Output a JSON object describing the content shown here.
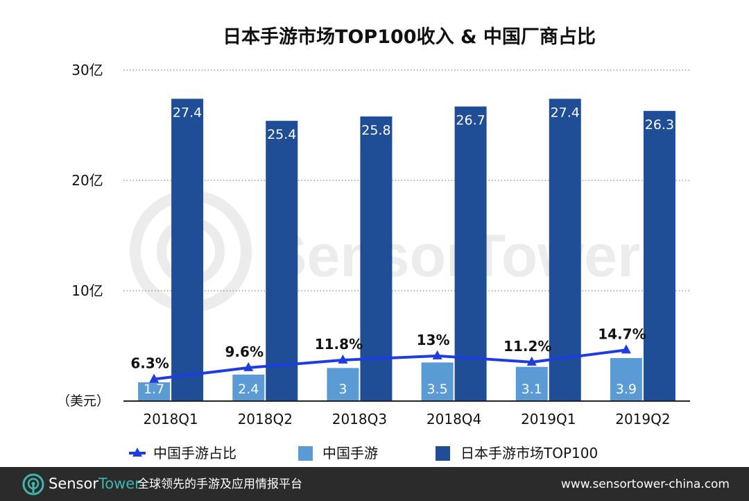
{
  "chart_data": {
    "type": "bar",
    "title": "日本手游市场TOP100收入 & 中国厂商占比",
    "categories": [
      "2018Q1",
      "2018Q2",
      "2018Q3",
      "2018Q4",
      "2019Q1",
      "2019Q2"
    ],
    "ylim": [
      0,
      30
    ],
    "yticks": [
      {
        "value": 30,
        "label": "30亿"
      },
      {
        "value": 20,
        "label": "20亿"
      },
      {
        "value": 10,
        "label": "10亿"
      }
    ],
    "ylabel": "（美元）",
    "grid": true,
    "legend_position": "bottom",
    "series": [
      {
        "name": "中国手游",
        "type": "bar",
        "color": "#5b9bd5",
        "values": [
          1.7,
          2.4,
          3,
          3.5,
          3.1,
          3.9
        ],
        "labels": [
          "1.7",
          "2.4",
          "3",
          "3.5",
          "3.1",
          "3.9"
        ]
      },
      {
        "name": "日本手游市场TOP100",
        "type": "bar",
        "color": "#1f4e96",
        "values": [
          27.4,
          25.4,
          25.8,
          26.7,
          27.4,
          26.3
        ],
        "labels": [
          "27.4",
          "25.4",
          "25.8",
          "26.7",
          "27.4",
          "26.3"
        ]
      },
      {
        "name": "中国手游占比",
        "type": "line",
        "color": "#1f3ce0",
        "values": [
          6.3,
          9.6,
          11.8,
          13,
          11.2,
          14.7
        ],
        "labels": [
          "6.3%",
          "9.6%",
          "11.8%",
          "13%",
          "11.2%",
          "14.7%"
        ]
      }
    ],
    "watermark": "SensorTower"
  },
  "footer": {
    "brand_part1": "Sensor",
    "brand_part2": "Tower",
    "tagline": "全球领先的手游及应用情报平台",
    "url": "www.sensortower-china.com",
    "icon": "sensortower-logo-icon",
    "accent_color": "#3fb6b0"
  }
}
